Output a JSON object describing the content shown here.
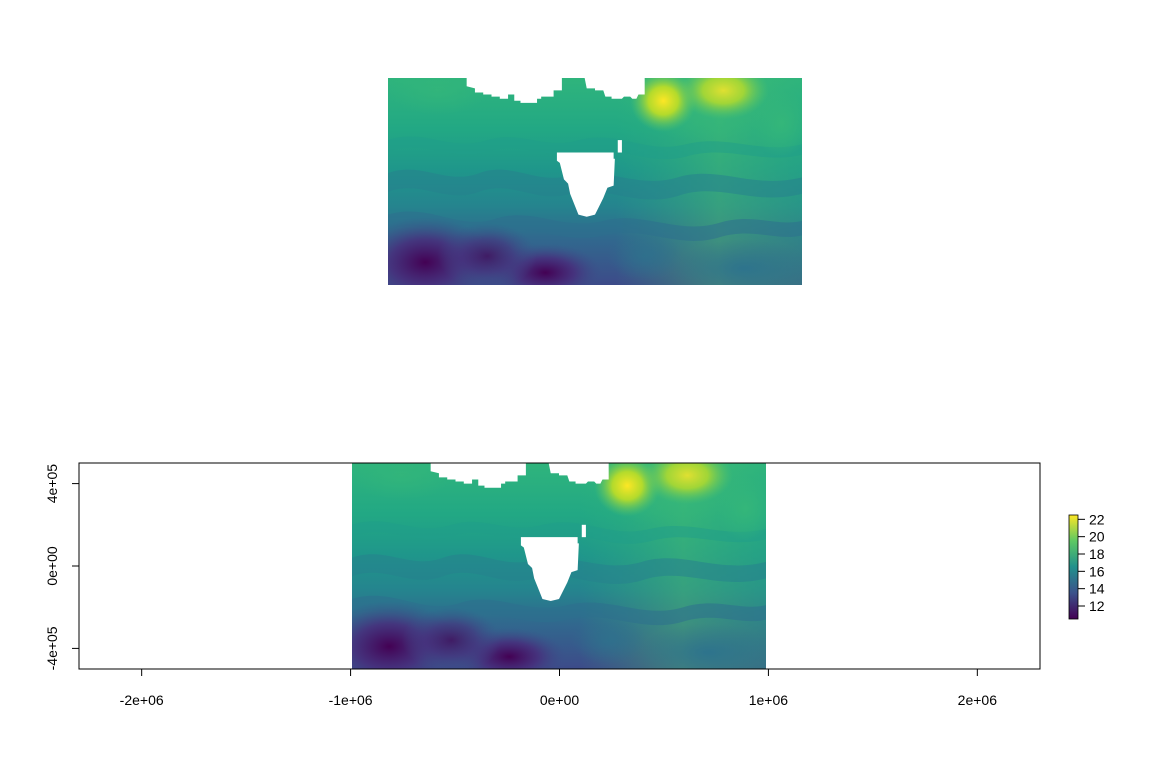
{
  "chart_data": [
    {
      "type": "heatmap",
      "title": "",
      "xlabel": "",
      "ylabel": "",
      "axes": "none",
      "description_of_field": "raster of temperature-like values, higher values (yellow) in the northeast, lower values (purple) in the southwest, land mask (white) near center",
      "value_range": [
        10.5,
        22.5
      ]
    },
    {
      "type": "heatmap",
      "title": "",
      "xlabel": "",
      "ylabel": "",
      "xlim": [
        -2300000,
        2300000
      ],
      "ylim": [
        -500000,
        500000
      ],
      "x_ticks": [
        {
          "value": -2000000,
          "label": "-2e+06"
        },
        {
          "value": -1000000,
          "label": "-1e+06"
        },
        {
          "value": 0,
          "label": "0e+00"
        },
        {
          "value": 1000000,
          "label": "1e+06"
        },
        {
          "value": 2000000,
          "label": "2e+06"
        }
      ],
      "y_ticks": [
        {
          "value": -400000,
          "label": "-4e+05"
        },
        {
          "value": 0,
          "label": "0e+00"
        },
        {
          "value": 400000,
          "label": "4e+05"
        }
      ],
      "raster_extent": {
        "xmin": -1000000,
        "xmax": 1000000,
        "ymin": -500000,
        "ymax": 500000
      },
      "legend": {
        "position": "right",
        "ticks": [
          12,
          14,
          16,
          18,
          20,
          22
        ],
        "range": [
          10.5,
          22.5
        ],
        "palette": [
          "#440154",
          "#3b528b",
          "#21908c",
          "#5dc863",
          "#fde725"
        ]
      }
    }
  ]
}
